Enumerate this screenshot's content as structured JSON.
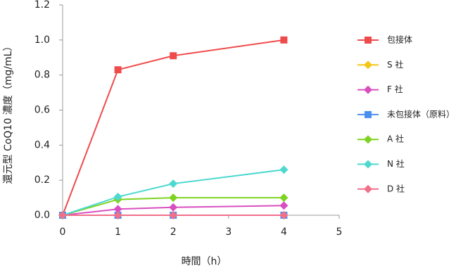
{
  "chart_data": {
    "type": "line",
    "x_label": "時間（h）",
    "y_label": "還元型 CoQ10 濃度（mg/mL）",
    "x": [
      0,
      1,
      2,
      4
    ],
    "xlim": [
      0,
      5
    ],
    "xticks": [
      0,
      1,
      2,
      3,
      4,
      5
    ],
    "ylim": [
      0,
      1.2
    ],
    "yticks": [
      {
        "value": 0,
        "label": "0.0"
      },
      0.2,
      0.4,
      0.6,
      0.8,
      {
        "value": 1,
        "label": "1.0"
      },
      1.2
    ],
    "grid": false,
    "legend": "right",
    "series": [
      {
        "name": "包接体",
        "color": "#f04b4b",
        "marker": "square",
        "values": [
          0,
          0.83,
          0.91,
          1.0
        ]
      },
      {
        "name": "S 社",
        "color": "#f5c518",
        "marker": "diamond",
        "values": [
          0,
          0,
          0,
          0
        ]
      },
      {
        "name": "F 社",
        "color": "#d94fc0",
        "marker": "diamond",
        "values": [
          0,
          0.035,
          0.045,
          0.055
        ]
      },
      {
        "name": "未包接体（原料）",
        "color": "#4a8ef0",
        "marker": "square",
        "values": [
          0,
          0,
          0,
          0
        ]
      },
      {
        "name": "A 社",
        "color": "#7ed321",
        "marker": "diamond",
        "values": [
          0,
          0.09,
          0.1,
          0.1
        ]
      },
      {
        "name": "N 社",
        "color": "#4dd9cf",
        "marker": "diamond",
        "values": [
          0,
          0.105,
          0.18,
          0.26
        ]
      },
      {
        "name": "D 社",
        "color": "#f0708a",
        "marker": "diamond",
        "values": [
          0,
          0,
          0,
          0
        ]
      }
    ]
  }
}
